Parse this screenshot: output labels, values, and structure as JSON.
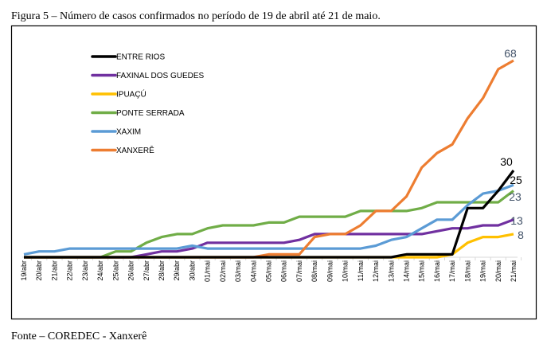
{
  "chart_data": {
    "type": "line",
    "title": "Figura 5 – Número de casos confirmados no período de 19 de abril até 21 de maio.",
    "source": "Fonte – COREDEC - Xanxerê",
    "xlabel": "",
    "ylabel": "",
    "ylim": [
      0,
      68
    ],
    "grid": false,
    "legend_position": "top-left",
    "categories": [
      "19/abr",
      "20/abr",
      "21/abr",
      "22/abr",
      "23/abr",
      "24/abr",
      "25/abr",
      "26/abr",
      "27/abr",
      "28/abr",
      "29/abr",
      "30/abr",
      "01/mai",
      "02/mai",
      "03/mai",
      "04/mai",
      "05/mai",
      "06/mai",
      "07/mai",
      "08/mai",
      "09/mai",
      "10/mai",
      "11/mai",
      "12/mai",
      "13/mai",
      "14/mai",
      "15/mai",
      "16/mai",
      "17/mai",
      "18/mai",
      "19/mai",
      "20/mai",
      "21/mai"
    ],
    "series": [
      {
        "name": "ENTRE RIOS",
        "color": "#000000",
        "label_color": "#000000",
        "end_label": "30",
        "values": [
          0,
          0,
          0,
          0,
          0,
          0,
          0,
          0,
          0,
          0,
          0,
          0,
          0,
          0,
          0,
          0,
          0,
          0,
          0,
          0,
          0,
          0,
          0,
          0,
          0,
          1,
          1,
          1,
          1,
          17,
          17,
          23,
          30
        ]
      },
      {
        "name": "FAXINAL DOS GUEDES",
        "color": "#7030a0",
        "label_color": "#44546a",
        "end_label": "13",
        "values": [
          0,
          0,
          0,
          0,
          0,
          0,
          0,
          0,
          1,
          2,
          2,
          3,
          5,
          5,
          5,
          5,
          5,
          5,
          6,
          8,
          8,
          8,
          8,
          8,
          8,
          8,
          8,
          9,
          10,
          10,
          11,
          11,
          13
        ]
      },
      {
        "name": "IPUAÇÚ",
        "color": "#ffc000",
        "label_color": "#44546a",
        "end_label": "8",
        "values": [
          0,
          0,
          0,
          0,
          0,
          0,
          0,
          0,
          0,
          0,
          0,
          0,
          0,
          0,
          0,
          0,
          0,
          0,
          0,
          0,
          0,
          0,
          0,
          0,
          0,
          0,
          0,
          0,
          1,
          5,
          7,
          7,
          8
        ]
      },
      {
        "name": "PONTE SERRADA",
        "color": "#70ad47",
        "label_color": "#44546a",
        "end_label": "23",
        "values": [
          0,
          0,
          0,
          0,
          0,
          0,
          2,
          2,
          5,
          7,
          8,
          8,
          10,
          11,
          11,
          11,
          12,
          12,
          14,
          14,
          14,
          14,
          16,
          16,
          16,
          16,
          17,
          19,
          19,
          19,
          19,
          19,
          23
        ]
      },
      {
        "name": "XAXIM",
        "color": "#5b9bd5",
        "label_color": "#000000",
        "end_label": "25",
        "values": [
          1,
          2,
          2,
          3,
          3,
          3,
          3,
          3,
          3,
          3,
          3,
          4,
          3,
          3,
          3,
          3,
          3,
          3,
          3,
          3,
          3,
          3,
          3,
          4,
          6,
          7,
          10,
          13,
          13,
          18,
          22,
          23,
          25
        ]
      },
      {
        "name": "XANXERÊ",
        "color": "#ed7d31",
        "label_color": "#44546a",
        "end_label": "68",
        "values": [
          0,
          0,
          0,
          0,
          0,
          0,
          0,
          0,
          0,
          0,
          0,
          0,
          0,
          0,
          0,
          0,
          1,
          1,
          1,
          7,
          8,
          8,
          11,
          16,
          16,
          21,
          31,
          36,
          39,
          48,
          55,
          65,
          68
        ]
      }
    ]
  }
}
